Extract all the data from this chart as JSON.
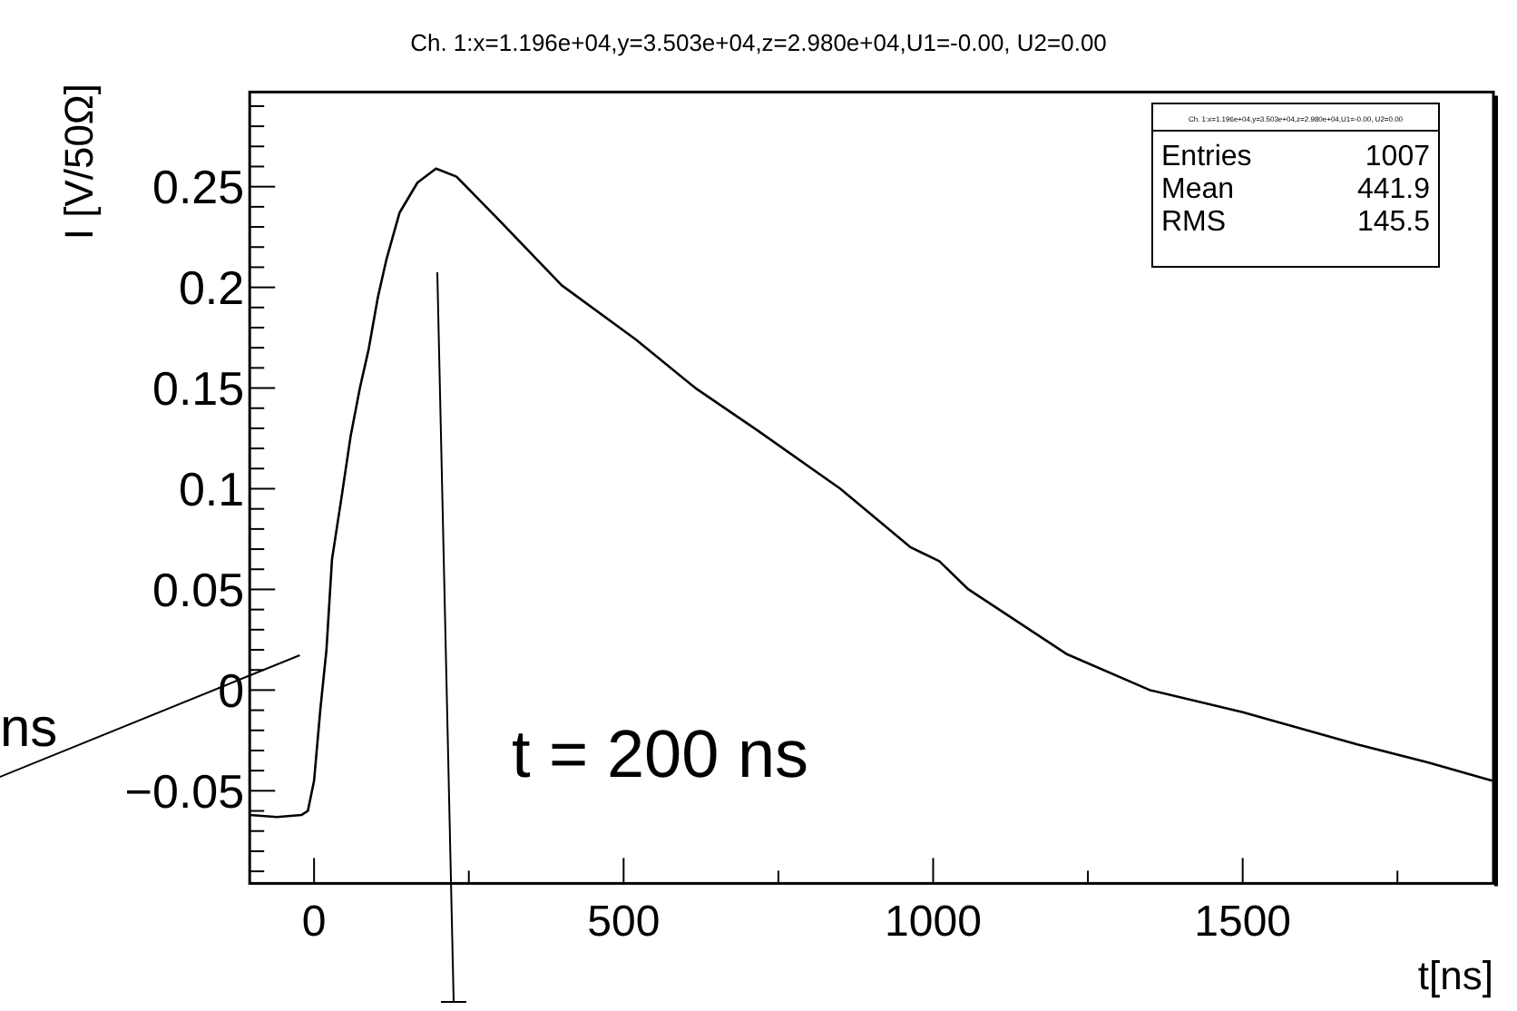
{
  "chart_data": {
    "type": "line",
    "title": "Ch. 1:x=1.196e+04,y=3.503e+04,z=2.980e+04,U1=-0.00, U2=0.00",
    "xlabel": "t[ns]",
    "ylabel": "I [V/50Ω]",
    "xlim": [
      -104,
      1905
    ],
    "ylim": [
      -0.096,
      0.297
    ],
    "xticks": [
      0,
      {
        "value": 250,
        "label": null
      },
      500,
      {
        "value": 750,
        "label": null
      },
      1000,
      {
        "value": 1250,
        "label": null
      },
      1500,
      {
        "value": 1750,
        "label": null
      }
    ],
    "yticks": [
      {
        "value": -0.09,
        "label": null
      },
      {
        "value": -0.08,
        "label": null
      },
      {
        "value": -0.07,
        "label": null
      },
      {
        "value": -0.06,
        "label": null
      },
      {
        "value": -0.05,
        "label": "−0.05"
      },
      {
        "value": -0.04,
        "label": null
      },
      {
        "value": -0.03,
        "label": null
      },
      {
        "value": -0.02,
        "label": null
      },
      {
        "value": -0.01,
        "label": null
      },
      0,
      {
        "value": 0.01,
        "label": null
      },
      {
        "value": 0.02,
        "label": null
      },
      {
        "value": 0.03,
        "label": null
      },
      {
        "value": 0.04,
        "label": null
      },
      0.05,
      {
        "value": 0.06,
        "label": null
      },
      {
        "value": 0.07,
        "label": null
      },
      {
        "value": 0.08,
        "label": null
      },
      {
        "value": 0.09,
        "label": null
      },
      0.1,
      {
        "value": 0.11,
        "label": null
      },
      {
        "value": 0.12,
        "label": null
      },
      {
        "value": 0.13,
        "label": null
      },
      {
        "value": 0.14,
        "label": null
      },
      0.15,
      {
        "value": 0.16,
        "label": null
      },
      {
        "value": 0.17,
        "label": null
      },
      {
        "value": 0.18,
        "label": null
      },
      {
        "value": 0.19,
        "label": null
      },
      0.2,
      {
        "value": 0.21,
        "label": null
      },
      {
        "value": 0.22,
        "label": null
      },
      {
        "value": 0.23,
        "label": null
      },
      {
        "value": 0.24,
        "label": null
      },
      0.25,
      {
        "value": 0.26,
        "label": null
      },
      {
        "value": 0.27,
        "label": null
      },
      {
        "value": 0.28,
        "label": null
      },
      {
        "value": 0.29,
        "label": null
      }
    ],
    "grid": false,
    "marker": "none",
    "line_style": "solid",
    "annotations": [
      "t = 200 ns",
      "ns",
      "Ch. 1:x=1.196e+04,y=3.503e+04,z=2.980e+04,U1=-0.00, U2=0.00",
      "Entries 1007",
      "Mean 441.9",
      "RMS 145.5"
    ],
    "series": [
      {
        "color": "#000000",
        "x": [
          -104,
          -60,
          -20,
          -10,
          0,
          10,
          20,
          29,
          44,
          59,
          74,
          88,
          103,
          117,
          138,
          167,
          197,
          230,
          300,
          400,
          520,
          616,
          716,
          850,
          963,
          1010,
          1057,
          1215,
          1350,
          1500,
          1685,
          1800,
          1903
        ],
        "values": [
          -0.062,
          -0.063,
          -0.062,
          -0.06,
          -0.045,
          -0.01,
          0.02,
          0.065,
          0.095,
          0.126,
          0.15,
          0.169,
          0.195,
          0.214,
          0.237,
          0.252,
          0.259,
          0.255,
          0.233,
          0.201,
          0.174,
          0.15,
          0.129,
          0.1,
          0.071,
          0.064,
          0.05,
          0.018,
          0.0,
          -0.011,
          -0.027,
          -0.036,
          -0.045
        ]
      }
    ]
  }
}
